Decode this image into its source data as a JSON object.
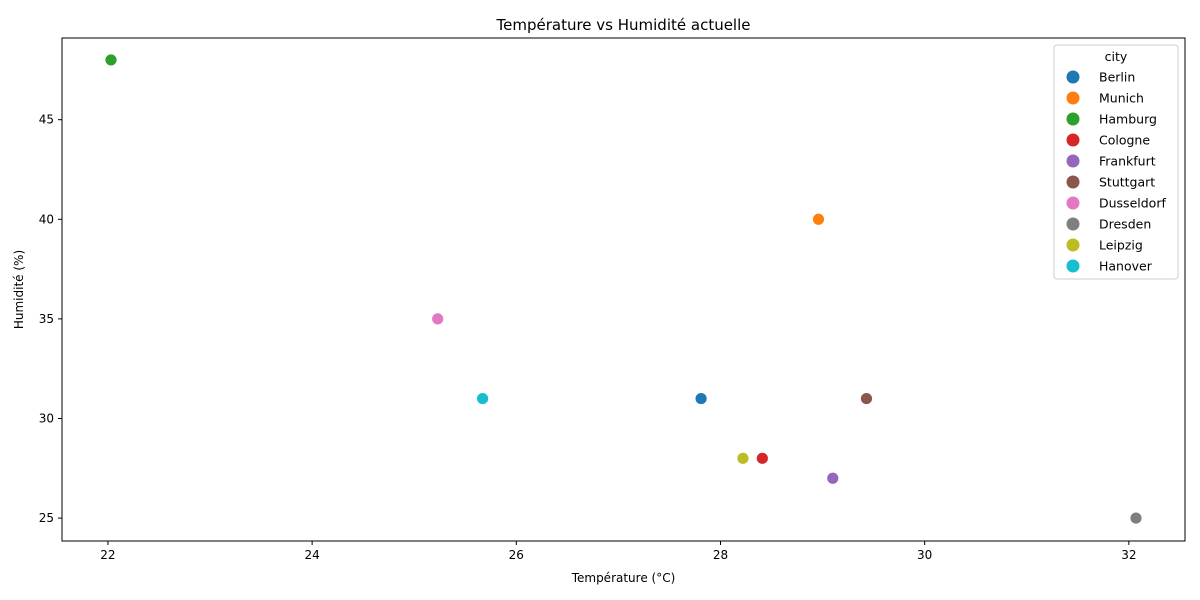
{
  "chart_data": {
    "type": "scatter",
    "title": "Température vs Humidité actuelle",
    "xlabel": "Température (°C)",
    "ylabel": "Humidité (%)",
    "xlim": [
      21.55,
      32.55
    ],
    "ylim": [
      23.85,
      49.1
    ],
    "xticks": [
      22,
      24,
      26,
      28,
      30,
      32
    ],
    "yticks": [
      25,
      30,
      35,
      40,
      45
    ],
    "grid": false,
    "legend": {
      "title": "city",
      "placement": "top-right"
    },
    "series": [
      {
        "name": "Berlin",
        "color": "#1f77b4",
        "points": [
          {
            "x": 27.81,
            "y": 31
          }
        ]
      },
      {
        "name": "Munich",
        "color": "#ff7f0e",
        "points": [
          {
            "x": 28.96,
            "y": 40
          }
        ]
      },
      {
        "name": "Hamburg",
        "color": "#2ca02c",
        "points": [
          {
            "x": 22.03,
            "y": 48
          }
        ]
      },
      {
        "name": "Cologne",
        "color": "#d62728",
        "points": [
          {
            "x": 28.41,
            "y": 28
          }
        ]
      },
      {
        "name": "Frankfurt",
        "color": "#9467bd",
        "points": [
          {
            "x": 29.1,
            "y": 27
          }
        ]
      },
      {
        "name": "Stuttgart",
        "color": "#8c564b",
        "points": [
          {
            "x": 29.43,
            "y": 31
          }
        ]
      },
      {
        "name": "Dusseldorf",
        "color": "#e377c2",
        "points": [
          {
            "x": 25.23,
            "y": 35
          }
        ]
      },
      {
        "name": "Dresden",
        "color": "#7f7f7f",
        "points": [
          {
            "x": 32.07,
            "y": 25
          }
        ]
      },
      {
        "name": "Leipzig",
        "color": "#bcbd22",
        "points": [
          {
            "x": 28.22,
            "y": 28
          }
        ]
      },
      {
        "name": "Hanover",
        "color": "#17becf",
        "points": [
          {
            "x": 25.67,
            "y": 31
          }
        ]
      }
    ]
  }
}
